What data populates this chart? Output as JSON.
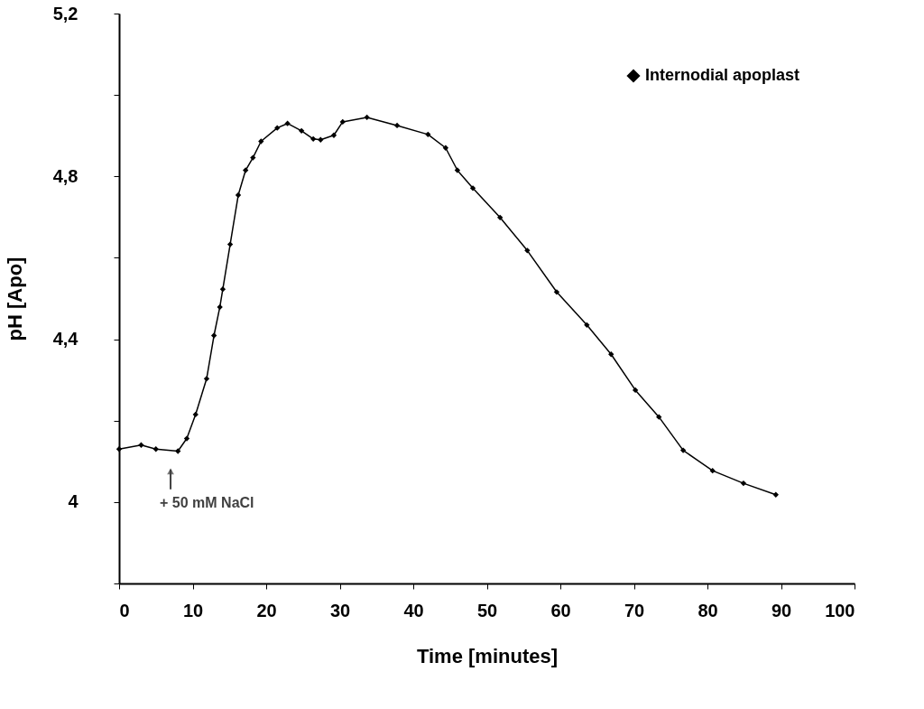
{
  "chart_data": {
    "type": "line",
    "xlabel": "Time [minutes]",
    "ylabel": "pH [Apo]",
    "x": [
      0,
      3,
      5,
      8,
      9.2,
      10.4,
      11.9,
      12.9,
      13.7,
      14.1,
      15.1,
      16.2,
      17.2,
      18.2,
      19.3,
      21.5,
      22.9,
      24.8,
      26.4,
      27.4,
      29.2,
      30.4,
      33.7,
      37.8,
      42,
      44.4,
      46,
      48.1,
      51.8,
      55.5,
      59.5,
      63.6,
      66.9,
      70.2,
      73.4,
      76.7,
      80.7,
      84.9,
      89.3
    ],
    "series": [
      {
        "name": "Internodial apoplast",
        "color": "#000000",
        "values": [
          4.13,
          4.14,
          4.13,
          4.125,
          4.156,
          4.215,
          4.303,
          4.409,
          4.479,
          4.523,
          4.633,
          4.754,
          4.815,
          4.846,
          4.886,
          4.919,
          4.93,
          4.912,
          4.892,
          4.89,
          4.901,
          4.934,
          4.945,
          4.925,
          4.903,
          4.87,
          4.815,
          4.771,
          4.699,
          4.618,
          4.516,
          4.435,
          4.363,
          4.275,
          4.209,
          4.127,
          4.077,
          4.046,
          4.018
        ]
      }
    ],
    "xlim": [
      0,
      100
    ],
    "xticks": [
      0,
      10,
      20,
      30,
      40,
      50,
      60,
      70,
      80,
      90,
      100
    ],
    "ylim": [
      3.8,
      5.2
    ],
    "yticks": [
      {
        "value": 3.8,
        "label": null
      },
      {
        "value": 4,
        "label": "4"
      },
      {
        "value": 4.2,
        "label": null
      },
      {
        "value": 4.4,
        "label": "4,4"
      },
      {
        "value": 4.6,
        "label": null
      },
      {
        "value": 4.8,
        "label": "4,8"
      },
      {
        "value": 5.0,
        "label": null
      },
      {
        "value": 5.2,
        "label": "5,2"
      }
    ],
    "annotations": [
      {
        "text": "+ 50 mM NaCl",
        "x": 7,
        "y": 4.12
      }
    ],
    "grid": false,
    "legend": "top right",
    "marker": "diamond",
    "line_style": "solid"
  }
}
